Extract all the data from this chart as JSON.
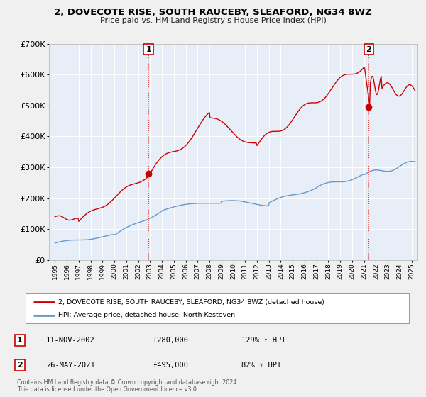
{
  "title": "2, DOVECOTE RISE, SOUTH RAUCEBY, SLEAFORD, NG34 8WZ",
  "subtitle": "Price paid vs. HM Land Registry's House Price Index (HPI)",
  "bg_color": "#f0f0f0",
  "plot_bg_color": "#e8eef8",
  "red_line_color": "#cc0000",
  "blue_line_color": "#6699cc",
  "marker_color": "#cc0000",
  "vline_color": "#cc3333",
  "grid_color": "#ffffff",
  "legend_label_red": "2, DOVECOTE RISE, SOUTH RAUCEBY, SLEAFORD, NG34 8WZ (detached house)",
  "legend_label_blue": "HPI: Average price, detached house, North Kesteven",
  "transaction1_date": "11-NOV-2002",
  "transaction1_price": "£280,000",
  "transaction1_hpi": "129% ↑ HPI",
  "transaction1_year": 2002.87,
  "transaction1_value": 280000,
  "transaction2_date": "26-MAY-2021",
  "transaction2_price": "£495,000",
  "transaction2_hpi": "82% ↑ HPI",
  "transaction2_year": 2021.4,
  "transaction2_value": 495000,
  "ylim": [
    0,
    700000
  ],
  "xlim_start": 1994.5,
  "xlim_end": 2025.5,
  "copyright_text": "Contains HM Land Registry data © Crown copyright and database right 2024.\nThis data is licensed under the Open Government Licence v3.0."
}
